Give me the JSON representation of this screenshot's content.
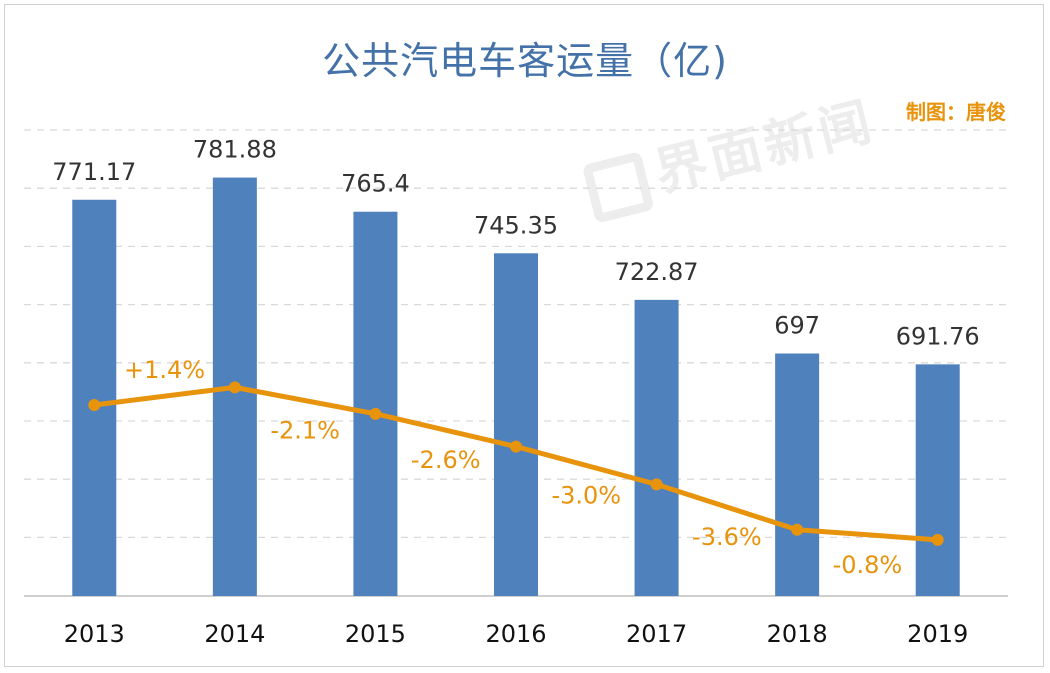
{
  "title": "公共汽电车客运量（亿)",
  "credit": "制图：唐俊",
  "watermark": "界面新闻",
  "colors": {
    "bar": "#4f81bd",
    "line": "#e8930c",
    "title": "#4472a8",
    "grid": "#d9d9d9"
  },
  "chart_data": {
    "type": "bar",
    "categories": [
      "2013",
      "2014",
      "2015",
      "2016",
      "2017",
      "2018",
      "2019"
    ],
    "series": [
      {
        "values": [
          771.17,
          781.88,
          765.4,
          745.35,
          722.87,
          697,
          691.76
        ],
        "labels": [
          "771.17",
          "781.88",
          "765.4",
          "745.35",
          "722.87",
          "697",
          "691.76"
        ]
      }
    ],
    "line_series": {
      "type": "line",
      "values": [
        1.4,
        -2.1,
        -2.6,
        -3.0,
        -3.6,
        -0.8
      ],
      "labels": [
        "+1.4%",
        "-2.1%",
        "-2.6%",
        "-3.0%",
        "-3.6%",
        "-0.8%"
      ]
    },
    "ylim": [
      580,
      800
    ],
    "grid": true,
    "title": "公共汽电车客运量（亿)",
    "xlabel": "",
    "ylabel": ""
  }
}
